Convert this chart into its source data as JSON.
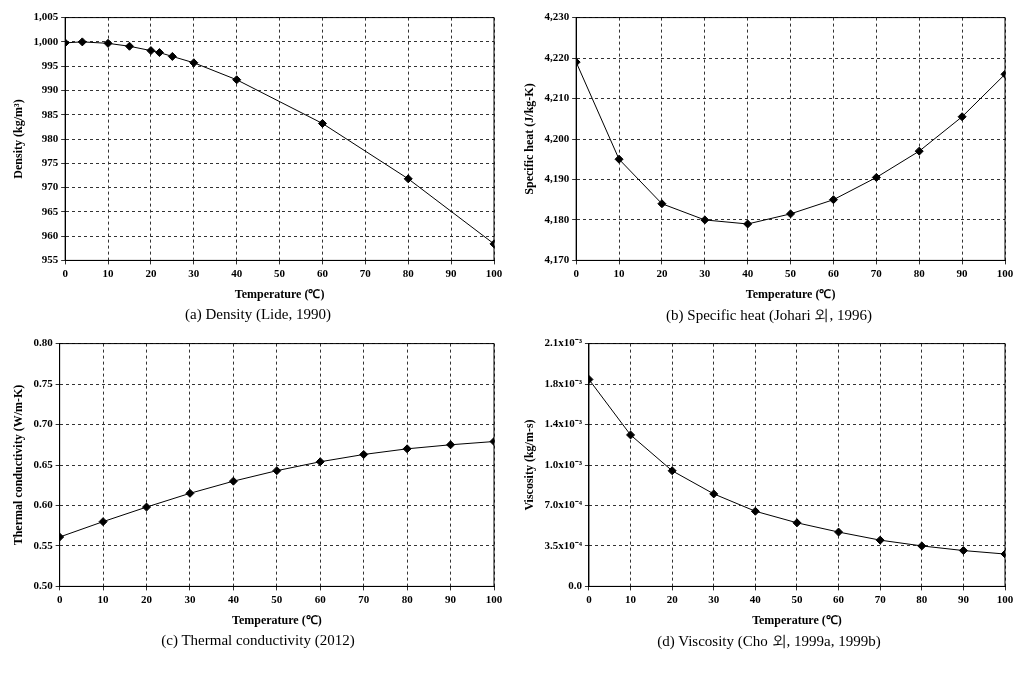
{
  "chart_data": [
    {
      "type": "line",
      "xlabel": "Temperature (℃)",
      "ylabel": "Density (kg/m³)",
      "annotations": [
        "(a)  Density  (Lide,  1990)"
      ],
      "color": "#000000",
      "marker": "diamond",
      "line_style": "solid",
      "grid": true,
      "x": [
        0,
        4,
        10,
        15,
        20,
        22,
        25,
        30,
        40,
        60,
        80,
        100
      ],
      "values": [
        999.8,
        1000.0,
        999.7,
        999.1,
        998.2,
        997.8,
        997.0,
        995.7,
        992.2,
        983.2,
        971.8,
        958.4
      ],
      "xlim": [
        0,
        100
      ],
      "xticks": [
        0,
        10,
        20,
        30,
        40,
        50,
        60,
        70,
        80,
        90,
        100
      ],
      "ylim": [
        955,
        1005
      ],
      "yticks": [
        955,
        960,
        965,
        970,
        975,
        980,
        985,
        990,
        995,
        {
          "value": 1000,
          "label": "1,000"
        },
        {
          "value": 1005,
          "label": "1,005"
        }
      ]
    },
    {
      "type": "line",
      "xlabel": "Temperature (℃)",
      "ylabel": "Specific heat (J/kg-K)",
      "annotations": [
        "(b)  Specific  heat  (Johari  외,  1996)"
      ],
      "color": "#000000",
      "marker": "diamond",
      "line_style": "solid",
      "grid": true,
      "x": [
        0,
        10,
        20,
        30,
        40,
        50,
        60,
        70,
        80,
        90,
        100
      ],
      "values": [
        4219,
        4195,
        4184,
        4180,
        4179,
        4181.5,
        4185,
        4190.5,
        4197,
        4205.5,
        4216
      ],
      "xlim": [
        0,
        100
      ],
      "xticks": [
        0,
        10,
        20,
        30,
        40,
        50,
        60,
        70,
        80,
        90,
        100
      ],
      "ylim": [
        4170,
        4230
      ],
      "yticks": [
        {
          "value": 4170,
          "label": "4,170"
        },
        {
          "value": 4180,
          "label": "4,180"
        },
        {
          "value": 4190,
          "label": "4,190"
        },
        {
          "value": 4200,
          "label": "4,200"
        },
        {
          "value": 4210,
          "label": "4,210"
        },
        {
          "value": 4220,
          "label": "4,220"
        },
        {
          "value": 4230,
          "label": "4,230"
        }
      ]
    },
    {
      "type": "line",
      "xlabel": "Temperature (℃)",
      "ylabel": "Thermal conductivity (W/m-K)",
      "annotations": [
        "(c)  Thermal  conductivity  (2012)"
      ],
      "color": "#000000",
      "marker": "diamond",
      "line_style": "solid",
      "grid": true,
      "x": [
        0,
        10,
        20,
        30,
        40,
        50,
        60,
        70,
        80,
        90,
        100
      ],
      "values": [
        0.561,
        0.58,
        0.598,
        0.615,
        0.63,
        0.643,
        0.654,
        0.663,
        0.67,
        0.675,
        0.679
      ],
      "xlim": [
        0,
        100
      ],
      "xticks": [
        0,
        10,
        20,
        30,
        40,
        50,
        60,
        70,
        80,
        90,
        100
      ],
      "ylim": [
        0.5,
        0.8
      ],
      "yticks": [
        {
          "value": 0.5,
          "label": "0.50"
        },
        {
          "value": 0.55,
          "label": "0.55"
        },
        {
          "value": 0.6,
          "label": "0.60"
        },
        {
          "value": 0.65,
          "label": "0.65"
        },
        {
          "value": 0.7,
          "label": "0.70"
        },
        {
          "value": 0.75,
          "label": "0.75"
        },
        {
          "value": 0.8,
          "label": "0.80"
        }
      ]
    },
    {
      "type": "line",
      "xlabel": "Temperature (℃)",
      "ylabel": "Viscosity (kg/m-s)",
      "annotations": [
        "(d)  Viscosity  (Cho  외,  1999a,  1999b)"
      ],
      "color": "#000000",
      "marker": "diamond",
      "line_style": "solid",
      "grid": true,
      "x": [
        0,
        10,
        20,
        30,
        40,
        50,
        60,
        70,
        80,
        90,
        100
      ],
      "values": [
        0.00179,
        0.00131,
        0.001,
        0.0008,
        0.00065,
        0.00055,
        0.00047,
        0.0004,
        0.00035,
        0.00031,
        0.00028
      ],
      "xlim": [
        0,
        100
      ],
      "xticks": [
        0,
        10,
        20,
        30,
        40,
        50,
        60,
        70,
        80,
        90,
        100
      ],
      "ylim": [
        0,
        0.0021
      ],
      "yticks": [
        {
          "value": 0,
          "label": "0.0"
        },
        {
          "value": 0.00035,
          "label": "3.5x10⁻⁴"
        },
        {
          "value": 0.0007,
          "label": "7.0x10⁻⁴"
        },
        {
          "value": 0.00105,
          "label": "1.0x10⁻³"
        },
        {
          "value": 0.0014,
          "label": "1.4x10⁻³"
        },
        {
          "value": 0.00175,
          "label": "1.8x10⁻³"
        },
        {
          "value": 0.0021,
          "label": "2.1x10⁻³"
        }
      ]
    }
  ]
}
